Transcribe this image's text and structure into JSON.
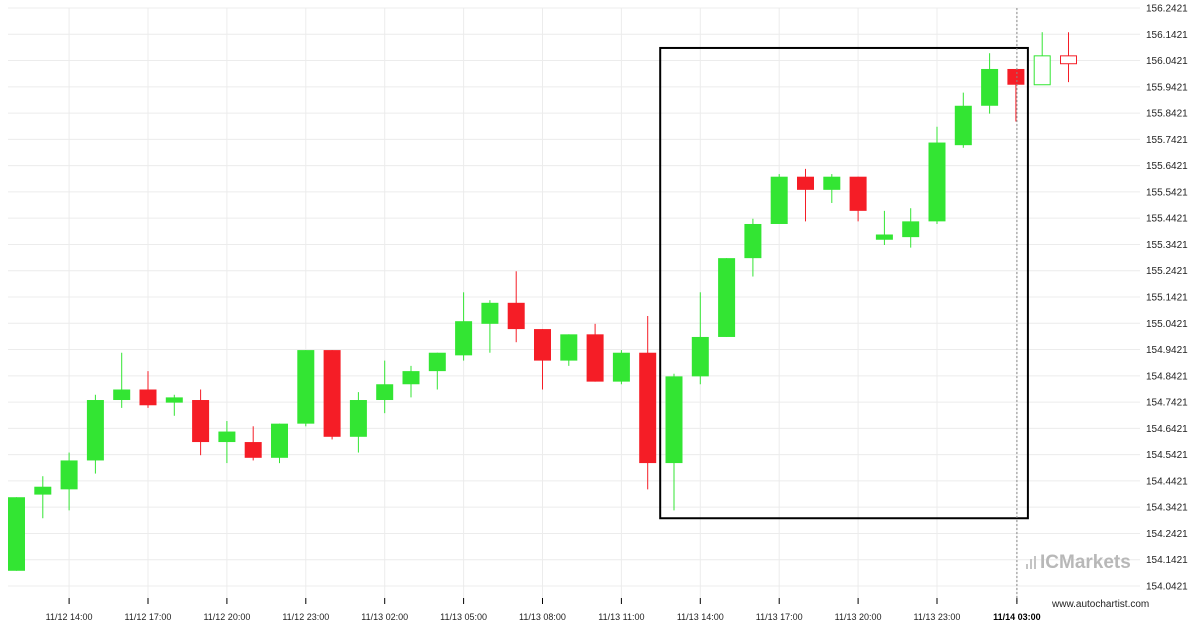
{
  "chart_data": {
    "type": "candlestick",
    "y_ticks": [
      "156.2421",
      "156.1421",
      "156.0421",
      "155.9421",
      "155.8421",
      "155.7421",
      "155.6421",
      "155.5421",
      "155.4421",
      "155.3421",
      "155.2421",
      "155.1421",
      "155.0421",
      "154.9421",
      "154.8421",
      "154.7421",
      "154.6421",
      "154.5421",
      "154.4421",
      "154.3421",
      "154.2421",
      "154.1421",
      "154.0421"
    ],
    "ylim": [
      154.0,
      156.28
    ],
    "x_labels": [
      "11/12 14:00",
      "11/12 17:00",
      "11/12 20:00",
      "11/12 23:00",
      "11/13 02:00",
      "11/13 05:00",
      "11/13 08:00",
      "11/13 11:00",
      "11/13 14:00",
      "11/13 17:00",
      "11/13 20:00",
      "11/13 23:00",
      "11/14 03:00"
    ],
    "highlighted_x_label": "11/14 03:00",
    "bull_color": "#33e533",
    "bear_color": "#f51d26",
    "grid": true,
    "candles": [
      {
        "o": 154.1,
        "h": 154.38,
        "l": 154.1,
        "c": 154.38
      },
      {
        "o": 154.39,
        "h": 154.46,
        "l": 154.3,
        "c": 154.42
      },
      {
        "o": 154.41,
        "h": 154.55,
        "l": 154.33,
        "c": 154.52
      },
      {
        "o": 154.52,
        "h": 154.77,
        "l": 154.47,
        "c": 154.75
      },
      {
        "o": 154.75,
        "h": 154.93,
        "l": 154.72,
        "c": 154.79
      },
      {
        "o": 154.79,
        "h": 154.86,
        "l": 154.72,
        "c": 154.73
      },
      {
        "o": 154.74,
        "h": 154.77,
        "l": 154.69,
        "c": 154.76
      },
      {
        "o": 154.75,
        "h": 154.79,
        "l": 154.54,
        "c": 154.59
      },
      {
        "o": 154.59,
        "h": 154.67,
        "l": 154.51,
        "c": 154.63
      },
      {
        "o": 154.59,
        "h": 154.65,
        "l": 154.52,
        "c": 154.53
      },
      {
        "o": 154.53,
        "h": 154.66,
        "l": 154.51,
        "c": 154.66
      },
      {
        "o": 154.66,
        "h": 154.94,
        "l": 154.65,
        "c": 154.94
      },
      {
        "o": 154.94,
        "h": 154.94,
        "l": 154.6,
        "c": 154.61
      },
      {
        "o": 154.61,
        "h": 154.78,
        "l": 154.55,
        "c": 154.75
      },
      {
        "o": 154.75,
        "h": 154.9,
        "l": 154.7,
        "c": 154.81
      },
      {
        "o": 154.81,
        "h": 154.88,
        "l": 154.76,
        "c": 154.86
      },
      {
        "o": 154.86,
        "h": 154.93,
        "l": 154.79,
        "c": 154.93
      },
      {
        "o": 154.92,
        "h": 155.16,
        "l": 154.9,
        "c": 155.05
      },
      {
        "o": 155.04,
        "h": 155.13,
        "l": 154.93,
        "c": 155.12
      },
      {
        "o": 155.12,
        "h": 155.24,
        "l": 154.97,
        "c": 155.02
      },
      {
        "o": 155.02,
        "h": 155.0,
        "l": 154.79,
        "c": 154.9
      },
      {
        "o": 154.9,
        "h": 155.0,
        "l": 154.88,
        "c": 155.0
      },
      {
        "o": 155.0,
        "h": 155.04,
        "l": 154.82,
        "c": 154.82
      },
      {
        "o": 154.82,
        "h": 154.94,
        "l": 154.81,
        "c": 154.93
      },
      {
        "o": 154.93,
        "h": 155.07,
        "l": 154.41,
        "c": 154.51
      },
      {
        "o": 154.51,
        "h": 154.85,
        "l": 154.33,
        "c": 154.84
      },
      {
        "o": 154.84,
        "h": 155.16,
        "l": 154.81,
        "c": 154.99
      },
      {
        "o": 154.99,
        "h": 155.29,
        "l": 154.99,
        "c": 155.29
      },
      {
        "o": 155.29,
        "h": 155.44,
        "l": 155.22,
        "c": 155.42
      },
      {
        "o": 155.42,
        "h": 155.61,
        "l": 155.42,
        "c": 155.6
      },
      {
        "o": 155.6,
        "h": 155.63,
        "l": 155.43,
        "c": 155.55
      },
      {
        "o": 155.55,
        "h": 155.61,
        "l": 155.5,
        "c": 155.6
      },
      {
        "o": 155.6,
        "h": 155.6,
        "l": 155.43,
        "c": 155.47
      },
      {
        "o": 155.36,
        "h": 155.47,
        "l": 155.34,
        "c": 155.38
      },
      {
        "o": 155.37,
        "h": 155.48,
        "l": 155.33,
        "c": 155.43
      },
      {
        "o": 155.43,
        "h": 155.79,
        "l": 155.42,
        "c": 155.73
      },
      {
        "o": 155.72,
        "h": 155.92,
        "l": 155.71,
        "c": 155.87
      },
      {
        "o": 155.87,
        "h": 156.07,
        "l": 155.84,
        "c": 156.01
      },
      {
        "o": 156.01,
        "h": 156.0,
        "l": 155.81,
        "c": 155.95
      },
      {
        "o": 155.95,
        "h": 156.15,
        "l": 155.95,
        "c": 156.06,
        "hollow": true
      },
      {
        "o": 156.06,
        "h": 156.15,
        "l": 155.96,
        "c": 156.03,
        "hollow": true
      }
    ]
  },
  "watermark": {
    "brand_ic": "IC",
    "brand_markets": "Markets",
    "color": "#b8b8b8"
  },
  "source_text": "www.autochartist.com"
}
